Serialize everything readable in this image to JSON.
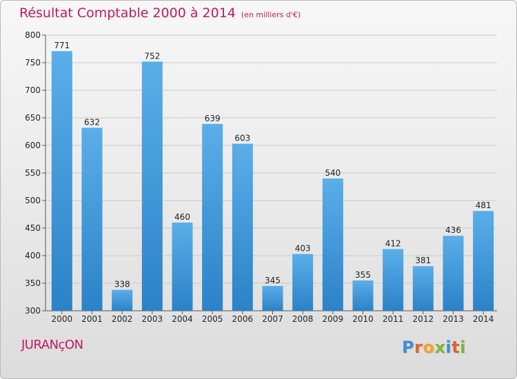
{
  "title": "Résultat Comptable 2000 à 2014",
  "subtitle": "(en milliers d'€)",
  "commune": "JURANçON",
  "logo": {
    "letters": [
      {
        "ch": "P",
        "color": "#3d8fd6"
      },
      {
        "ch": "r",
        "color": "#e0622b"
      },
      {
        "ch": "o",
        "color": "#f4a321"
      },
      {
        "ch": "x",
        "color": "#7cb83a"
      },
      {
        "ch": "i",
        "color": "#3d8fd6"
      },
      {
        "ch": "t",
        "color": "#e0622b"
      },
      {
        "ch": "i",
        "color": "#7cb83a"
      }
    ]
  },
  "colors": {
    "bar_top": "#5aaee9",
    "bar_bottom": "#2b82c7",
    "accent": "#c2185b"
  },
  "chart_data": {
    "type": "bar",
    "title": "Résultat Comptable 2000 à 2014",
    "subtitle": "(en milliers d'€)",
    "xlabel": "",
    "ylabel": "",
    "categories": [
      "2000",
      "2001",
      "2002",
      "2003",
      "2004",
      "2005",
      "2006",
      "2007",
      "2008",
      "2009",
      "2010",
      "2011",
      "2012",
      "2013",
      "2014"
    ],
    "values": [
      771,
      632,
      338,
      752,
      460,
      639,
      603,
      345,
      403,
      540,
      355,
      412,
      381,
      436,
      481
    ],
    "ylim": [
      300,
      800
    ],
    "yticks": [
      300,
      350,
      400,
      450,
      500,
      550,
      600,
      650,
      700,
      750,
      800
    ],
    "grid": true
  }
}
